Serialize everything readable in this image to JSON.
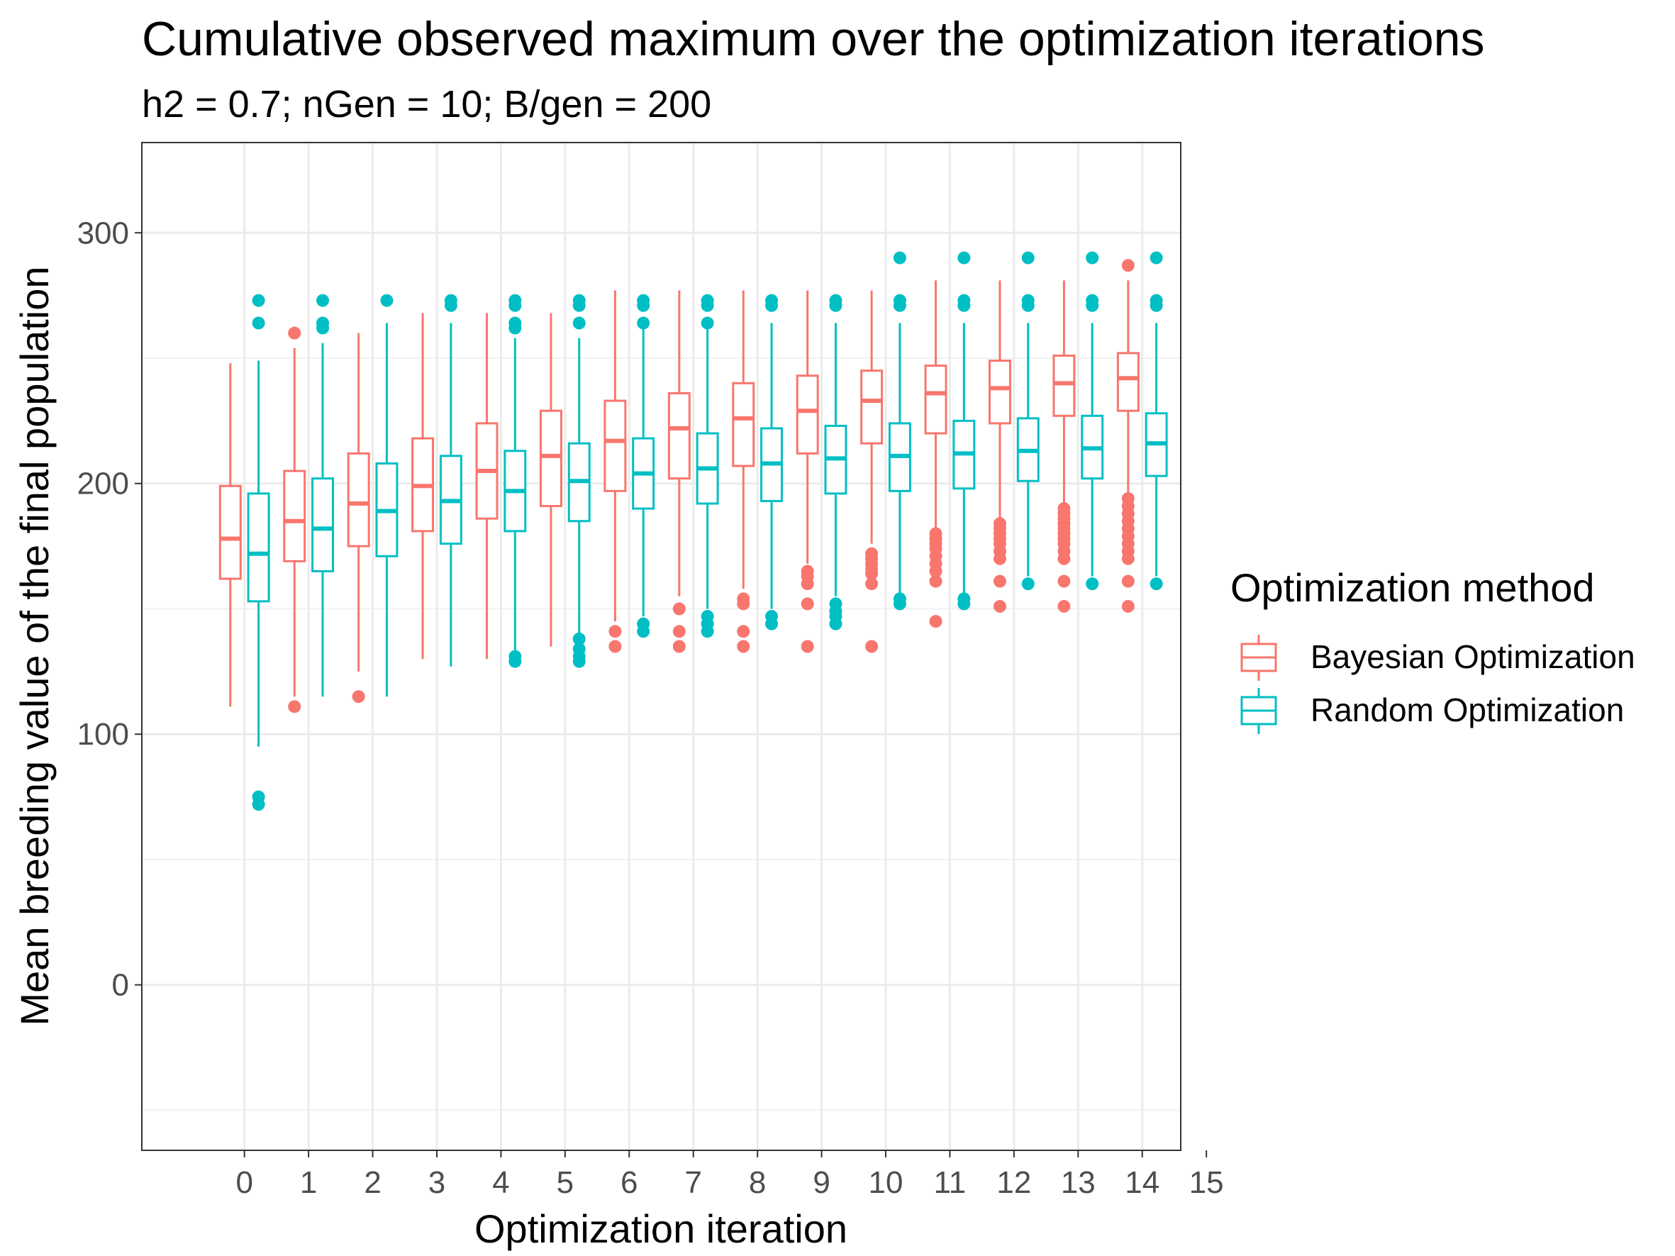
{
  "chart_data": {
    "type": "boxplot",
    "title": "Cumulative observed maximum over the optimization iterations",
    "subtitle": "h2 = 0.7; nGen = 10; B/gen = 200",
    "xlabel": "Optimization iteration",
    "ylabel": "Mean breeding value of the final population",
    "xlim": [
      -1.6,
      14.6
    ],
    "ylim": [
      -66,
      336
    ],
    "x_ticks": [
      0,
      1,
      2,
      3,
      4,
      5,
      6,
      7,
      8,
      9,
      10,
      11,
      12,
      13,
      14,
      15
    ],
    "y_ticks": [
      0,
      100,
      200,
      300
    ],
    "y_minor_ticks": [
      -50,
      50,
      150,
      250
    ],
    "grid": true,
    "legend": {
      "title": "Optimization method",
      "position": "right",
      "entries": [
        "Bayesian Optimization",
        "Random Optimization"
      ]
    },
    "colors": {
      "Bayesian Optimization": "#F8766D",
      "Random Optimization": "#00BFC4"
    },
    "series": [
      {
        "name": "Bayesian Optimization",
        "boxes": [
          {
            "x": 0,
            "lower_whisker": 111,
            "q1": 162,
            "median": 178,
            "q3": 199,
            "upper_whisker": 248,
            "outliers": []
          },
          {
            "x": 1,
            "lower_whisker": 115,
            "q1": 169,
            "median": 185,
            "q3": 205,
            "upper_whisker": 254,
            "outliers": [
              111,
              260
            ]
          },
          {
            "x": 2,
            "lower_whisker": 125,
            "q1": 175,
            "median": 192,
            "q3": 212,
            "upper_whisker": 260,
            "outliers": [
              115
            ]
          },
          {
            "x": 3,
            "lower_whisker": 130,
            "q1": 181,
            "median": 199,
            "q3": 218,
            "upper_whisker": 268,
            "outliers": []
          },
          {
            "x": 4,
            "lower_whisker": 130,
            "q1": 186,
            "median": 205,
            "q3": 224,
            "upper_whisker": 268,
            "outliers": []
          },
          {
            "x": 5,
            "lower_whisker": 135,
            "q1": 191,
            "median": 211,
            "q3": 229,
            "upper_whisker": 268,
            "outliers": []
          },
          {
            "x": 6,
            "lower_whisker": 145,
            "q1": 197,
            "median": 217,
            "q3": 233,
            "upper_whisker": 277,
            "outliers": [
              135,
              141
            ]
          },
          {
            "x": 7,
            "lower_whisker": 155,
            "q1": 202,
            "median": 222,
            "q3": 236,
            "upper_whisker": 277,
            "outliers": [
              135,
              141,
              150
            ]
          },
          {
            "x": 8,
            "lower_whisker": 158,
            "q1": 207,
            "median": 226,
            "q3": 240,
            "upper_whisker": 277,
            "outliers": [
              135,
              141,
              152,
              154
            ]
          },
          {
            "x": 9,
            "lower_whisker": 168,
            "q1": 212,
            "median": 229,
            "q3": 243,
            "upper_whisker": 277,
            "outliers": [
              135,
              152,
              160,
              163,
              165
            ]
          },
          {
            "x": 10,
            "lower_whisker": 176,
            "q1": 216,
            "median": 233,
            "q3": 245,
            "upper_whisker": 277,
            "outliers": [
              135,
              160,
              164,
              166,
              168,
              170,
              172
            ]
          },
          {
            "x": 11,
            "lower_whisker": 181,
            "q1": 220,
            "median": 236,
            "q3": 247,
            "upper_whisker": 281,
            "outliers": [
              145,
              161,
              165,
              168,
              171,
              174,
              176,
              178,
              180
            ]
          },
          {
            "x": 12,
            "lower_whisker": 186,
            "q1": 224,
            "median": 238,
            "q3": 249,
            "upper_whisker": 281,
            "outliers": [
              151,
              161,
              170,
              173,
              176,
              178,
              180,
              182,
              184
            ]
          },
          {
            "x": 13,
            "lower_whisker": 192,
            "q1": 227,
            "median": 240,
            "q3": 251,
            "upper_whisker": 281,
            "outliers": [
              151,
              161,
              170,
              173,
              176,
              178,
              180,
              182,
              184,
              186,
              188,
              190
            ]
          },
          {
            "x": 14,
            "lower_whisker": 196,
            "q1": 229,
            "median": 242,
            "q3": 252,
            "upper_whisker": 281,
            "outliers": [
              151,
              161,
              170,
              173,
              176,
              179,
              182,
              185,
              188,
              191,
              194,
              287
            ]
          }
        ]
      },
      {
        "name": "Random Optimization",
        "boxes": [
          {
            "x": 0,
            "lower_whisker": 95,
            "q1": 153,
            "median": 172,
            "q3": 196,
            "upper_whisker": 249,
            "outliers": [
              72,
              75,
              264,
              273
            ]
          },
          {
            "x": 1,
            "lower_whisker": 115,
            "q1": 165,
            "median": 182,
            "q3": 202,
            "upper_whisker": 256,
            "outliers": [
              262,
              264,
              273
            ]
          },
          {
            "x": 2,
            "lower_whisker": 115,
            "q1": 171,
            "median": 189,
            "q3": 208,
            "upper_whisker": 264,
            "outliers": [
              273
            ]
          },
          {
            "x": 3,
            "lower_whisker": 127,
            "q1": 176,
            "median": 193,
            "q3": 211,
            "upper_whisker": 264,
            "outliers": [
              271,
              273
            ]
          },
          {
            "x": 4,
            "lower_whisker": 133,
            "q1": 181,
            "median": 197,
            "q3": 213,
            "upper_whisker": 258,
            "outliers": [
              129,
              131,
              262,
              264,
              271,
              273
            ]
          },
          {
            "x": 5,
            "lower_whisker": 140,
            "q1": 185,
            "median": 201,
            "q3": 216,
            "upper_whisker": 258,
            "outliers": [
              129,
              131,
              134,
              138,
              264,
              271,
              273
            ]
          },
          {
            "x": 6,
            "lower_whisker": 147,
            "q1": 190,
            "median": 204,
            "q3": 218,
            "upper_whisker": 264,
            "outliers": [
              141,
              144,
              264,
              271,
              273
            ]
          },
          {
            "x": 7,
            "lower_whisker": 150,
            "q1": 192,
            "median": 206,
            "q3": 220,
            "upper_whisker": 264,
            "outliers": [
              141,
              144,
              147,
              264,
              271,
              273
            ]
          },
          {
            "x": 8,
            "lower_whisker": 150,
            "q1": 193,
            "median": 208,
            "q3": 222,
            "upper_whisker": 264,
            "outliers": [
              144,
              147,
              271,
              273
            ]
          },
          {
            "x": 9,
            "lower_whisker": 155,
            "q1": 196,
            "median": 210,
            "q3": 223,
            "upper_whisker": 264,
            "outliers": [
              144,
              147,
              149,
              152,
              271,
              273
            ]
          },
          {
            "x": 10,
            "lower_whisker": 155,
            "q1": 197,
            "median": 211,
            "q3": 224,
            "upper_whisker": 264,
            "outliers": [
              152,
              154,
              271,
              273,
              290
            ]
          },
          {
            "x": 11,
            "lower_whisker": 155,
            "q1": 198,
            "median": 212,
            "q3": 225,
            "upper_whisker": 264,
            "outliers": [
              152,
              154,
              271,
              273,
              290
            ]
          },
          {
            "x": 12,
            "lower_whisker": 163,
            "q1": 201,
            "median": 213,
            "q3": 226,
            "upper_whisker": 264,
            "outliers": [
              160,
              271,
              273,
              290
            ]
          },
          {
            "x": 13,
            "lower_whisker": 163,
            "q1": 202,
            "median": 214,
            "q3": 227,
            "upper_whisker": 264,
            "outliers": [
              160,
              271,
              273,
              290
            ]
          },
          {
            "x": 14,
            "lower_whisker": 163,
            "q1": 203,
            "median": 216,
            "q3": 228,
            "upper_whisker": 264,
            "outliers": [
              160,
              271,
              273,
              290
            ]
          }
        ]
      }
    ]
  }
}
